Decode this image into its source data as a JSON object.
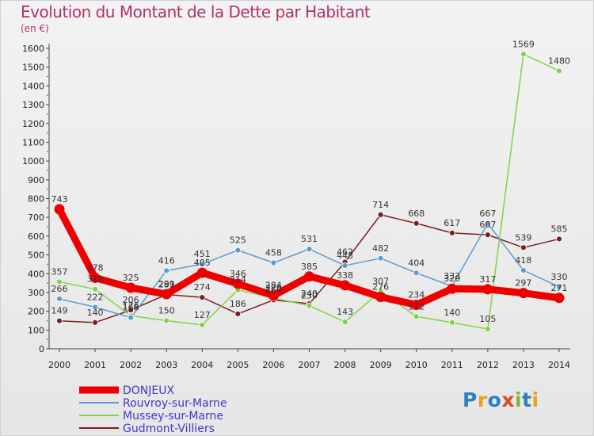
{
  "title": "Evolution du Montant de la Dette par Habitant",
  "subtitle": "(en €)",
  "logo": "Proxiti",
  "chart_data": {
    "type": "line",
    "title": "Evolution du Montant de la Dette par Habitant",
    "subtitle": "(en €)",
    "x": [
      2000,
      2001,
      2002,
      2003,
      2004,
      2005,
      2006,
      2007,
      2008,
      2009,
      2010,
      2011,
      2012,
      2013,
      2014
    ],
    "ylim": [
      0,
      1600
    ],
    "yticks": [
      0,
      100,
      200,
      300,
      400,
      500,
      600,
      700,
      800,
      900,
      1000,
      1100,
      1200,
      1300,
      1400,
      1500,
      1600
    ],
    "grid": false,
    "legend": "bottom-left",
    "series": [
      {
        "name": "DONJEUX",
        "color": "#ee0000",
        "values": [
          743,
          378,
          325,
          291,
          405,
          346,
          284,
          385,
          338,
          276,
          234,
          320,
          317,
          297,
          271
        ]
      },
      {
        "name": "Rouvroy-sur-Marne",
        "color": "#5b9bd5",
        "values": [
          266,
          222,
          166,
          416,
          451,
          525,
          458,
          531,
          443,
          482,
          404,
          333,
          667,
          418,
          330
        ]
      },
      {
        "name": "Mussey-sur-Marne",
        "color": "#7ed34a",
        "values": [
          357,
          318,
          176,
          150,
          127,
          314,
          270,
          230,
          143,
          307,
          172,
          140,
          105,
          1569,
          1480
        ]
      },
      {
        "name": "Gudmont-Villiers",
        "color": "#7a1f1f",
        "values": [
          149,
          140,
          206,
          289,
          274,
          186,
          260,
          240,
          462,
          714,
          668,
          617,
          607,
          539,
          585
        ]
      }
    ]
  }
}
